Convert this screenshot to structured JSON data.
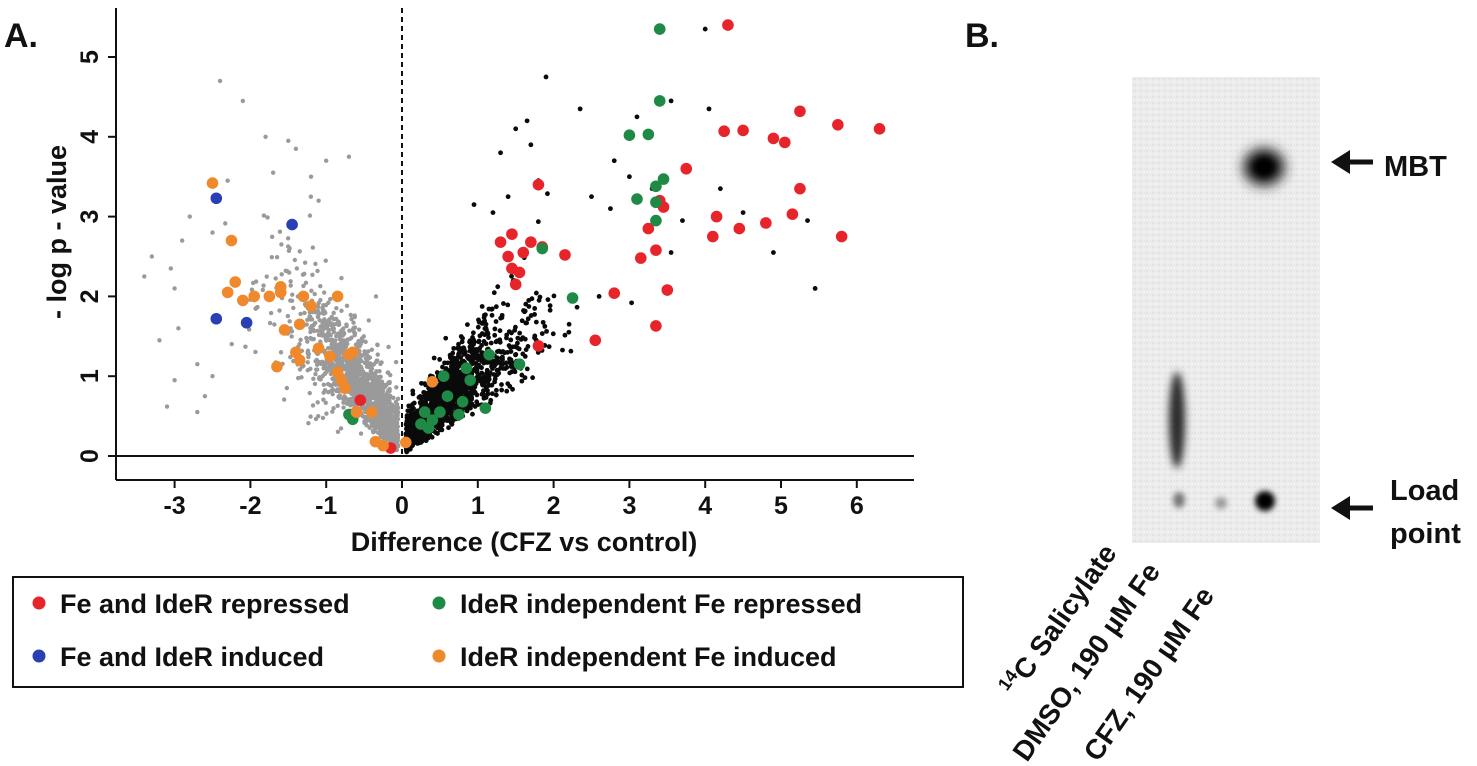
{
  "panels": {
    "a_label": "A.",
    "b_label": "B."
  },
  "chart_data": {
    "type": "scatter",
    "title": "",
    "xlabel": "Difference (CFZ vs control)",
    "ylabel": "- log p - value",
    "xlim": [
      -3.75,
      6.75
    ],
    "ylim": [
      -0.35,
      5.6
    ],
    "x_ticks": [
      -3,
      -2,
      -1,
      0,
      1,
      2,
      3,
      4,
      5,
      6
    ],
    "y_ticks": [
      0,
      1,
      2,
      3,
      4,
      5
    ],
    "reference_lines": {
      "vertical_dashed_x": 0,
      "horizontal_y": 0
    },
    "background_points": {
      "gray_count": 1600,
      "black_count": 1600,
      "gray_outliers": [
        [
          -2.4,
          4.7
        ],
        [
          -2.1,
          4.45
        ],
        [
          -1.8,
          4.0
        ],
        [
          -1.5,
          3.95
        ],
        [
          -1.4,
          3.85
        ],
        [
          -1.7,
          3.55
        ],
        [
          -2.3,
          3.45
        ],
        [
          -1.0,
          3.7
        ],
        [
          -0.7,
          3.75
        ],
        [
          -1.2,
          3.5
        ],
        [
          -3.3,
          2.5
        ],
        [
          -3.4,
          2.25
        ],
        [
          -3.05,
          2.35
        ],
        [
          -3.0,
          2.1
        ],
        [
          -2.95,
          1.6
        ],
        [
          -3.2,
          1.45
        ],
        [
          -2.7,
          1.15
        ],
        [
          -2.5,
          1.0
        ],
        [
          -3.0,
          0.95
        ],
        [
          -2.6,
          0.75
        ],
        [
          -3.1,
          0.62
        ],
        [
          -2.7,
          0.55
        ],
        [
          -2.8,
          3.0
        ],
        [
          -2.5,
          2.8
        ],
        [
          -1.1,
          3.2
        ],
        [
          -2.9,
          2.7
        ]
      ],
      "black_outliers": [
        [
          4.0,
          5.35
        ],
        [
          1.9,
          4.75
        ],
        [
          3.1,
          4.25
        ],
        [
          1.65,
          4.2
        ],
        [
          2.35,
          4.35
        ],
        [
          1.5,
          4.1
        ],
        [
          3.55,
          4.45
        ],
        [
          4.05,
          4.35
        ],
        [
          1.7,
          3.9
        ],
        [
          1.3,
          3.8
        ],
        [
          2.8,
          3.7
        ],
        [
          3.0,
          3.5
        ],
        [
          3.3,
          3.35
        ],
        [
          2.5,
          3.25
        ],
        [
          1.8,
          3.45
        ],
        [
          4.9,
          2.55
        ],
        [
          5.35,
          2.95
        ],
        [
          5.45,
          2.1
        ],
        [
          4.2,
          3.35
        ],
        [
          2.75,
          3.1
        ],
        [
          3.55,
          2.55
        ],
        [
          3.7,
          2.95
        ],
        [
          4.5,
          3.05
        ],
        [
          2.6,
          2.0
        ],
        [
          0.95,
          3.15
        ],
        [
          1.4,
          3.25
        ],
        [
          1.2,
          3.05
        ]
      ]
    },
    "series": [
      {
        "name": "Fe and IdeR repressed",
        "color": "#e8242b",
        "points": [
          [
            4.3,
            5.4
          ],
          [
            4.25,
            4.07
          ],
          [
            4.5,
            4.08
          ],
          [
            4.9,
            3.98
          ],
          [
            5.05,
            3.93
          ],
          [
            5.25,
            4.32
          ],
          [
            5.75,
            4.15
          ],
          [
            6.3,
            4.1
          ],
          [
            3.75,
            3.6
          ],
          [
            5.25,
            3.35
          ],
          [
            5.15,
            3.03
          ],
          [
            4.15,
            3.0
          ],
          [
            4.8,
            2.92
          ],
          [
            4.45,
            2.85
          ],
          [
            4.1,
            2.75
          ],
          [
            5.8,
            2.75
          ],
          [
            3.4,
            3.2
          ],
          [
            3.45,
            3.12
          ],
          [
            3.25,
            2.85
          ],
          [
            3.35,
            2.58
          ],
          [
            3.15,
            2.48
          ],
          [
            2.8,
            2.04
          ],
          [
            3.5,
            2.08
          ],
          [
            3.35,
            1.63
          ],
          [
            2.55,
            1.45
          ],
          [
            1.8,
            1.38
          ],
          [
            1.8,
            3.4
          ],
          [
            1.85,
            2.62
          ],
          [
            1.7,
            2.68
          ],
          [
            1.45,
            2.78
          ],
          [
            1.6,
            2.55
          ],
          [
            1.4,
            2.5
          ],
          [
            1.3,
            2.68
          ],
          [
            2.15,
            2.52
          ],
          [
            1.45,
            2.35
          ],
          [
            1.55,
            2.3
          ],
          [
            1.5,
            2.15
          ],
          [
            -0.55,
            0.7
          ],
          [
            -0.15,
            0.1
          ]
        ]
      },
      {
        "name": "Fe and IdeR induced",
        "color": "#2b3fb5",
        "points": [
          [
            -2.45,
            3.23
          ],
          [
            -1.45,
            2.9
          ],
          [
            -2.45,
            1.72
          ],
          [
            -2.05,
            1.67
          ]
        ]
      },
      {
        "name": "IdeR independent Fe repressed",
        "color": "#1f8a45",
        "points": [
          [
            3.4,
            5.35
          ],
          [
            3.4,
            4.45
          ],
          [
            3.0,
            4.02
          ],
          [
            3.25,
            4.03
          ],
          [
            3.45,
            3.47
          ],
          [
            3.35,
            3.38
          ],
          [
            3.35,
            3.18
          ],
          [
            3.1,
            3.22
          ],
          [
            3.35,
            2.95
          ],
          [
            1.85,
            2.6
          ],
          [
            2.25,
            1.98
          ],
          [
            1.15,
            1.27
          ],
          [
            1.55,
            1.15
          ],
          [
            0.55,
            1.0
          ],
          [
            0.85,
            1.1
          ],
          [
            0.9,
            0.95
          ],
          [
            0.6,
            0.75
          ],
          [
            0.8,
            0.68
          ],
          [
            1.1,
            0.6
          ],
          [
            0.3,
            0.55
          ],
          [
            0.5,
            0.55
          ],
          [
            0.4,
            0.45
          ],
          [
            0.25,
            0.4
          ],
          [
            0.35,
            0.35
          ],
          [
            0.75,
            0.52
          ],
          [
            -0.7,
            0.52
          ],
          [
            -0.65,
            0.46
          ]
        ]
      },
      {
        "name": "IdeR independent Fe induced",
        "color": "#f0892c",
        "points": [
          [
            -2.5,
            3.42
          ],
          [
            -2.25,
            2.7
          ],
          [
            -2.2,
            2.18
          ],
          [
            -2.3,
            2.05
          ],
          [
            -2.1,
            1.95
          ],
          [
            -1.95,
            2.0
          ],
          [
            -1.75,
            2.0
          ],
          [
            -1.6,
            2.05
          ],
          [
            -1.6,
            2.12
          ],
          [
            -1.2,
            1.88
          ],
          [
            -1.3,
            2.0
          ],
          [
            -1.35,
            1.65
          ],
          [
            -0.85,
            2.0
          ],
          [
            -1.55,
            1.58
          ],
          [
            -1.1,
            1.35
          ],
          [
            -1.4,
            1.3
          ],
          [
            -0.95,
            1.25
          ],
          [
            -0.7,
            1.27
          ],
          [
            -0.65,
            1.3
          ],
          [
            -1.35,
            1.2
          ],
          [
            -1.65,
            1.12
          ],
          [
            -0.85,
            1.05
          ],
          [
            -0.8,
            0.95
          ],
          [
            -0.75,
            0.85
          ],
          [
            -0.6,
            0.55
          ],
          [
            -0.4,
            0.55
          ],
          [
            -0.35,
            0.18
          ],
          [
            -0.25,
            0.13
          ],
          [
            0.05,
            0.17
          ],
          [
            0.4,
            0.93
          ]
        ]
      }
    ]
  },
  "legend": {
    "items": [
      {
        "label": "Fe and IdeR repressed",
        "color": "#e8242b"
      },
      {
        "label": "IdeR independent Fe repressed",
        "color": "#1f8a45"
      },
      {
        "label": "Fe and IdeR induced",
        "color": "#2b3fb5"
      },
      {
        "label": "IdeR independent Fe induced",
        "color": "#f0892c"
      }
    ]
  },
  "tlc": {
    "annotations": {
      "mbt": "MBT",
      "load_line1": "Load",
      "load_line2": "point"
    },
    "lanes": {
      "sup": "14",
      "lane1": "C Salicylate",
      "lane2": "DMSO, 190 µM Fe",
      "lane3": "CFZ, 190 µM Fe"
    }
  }
}
